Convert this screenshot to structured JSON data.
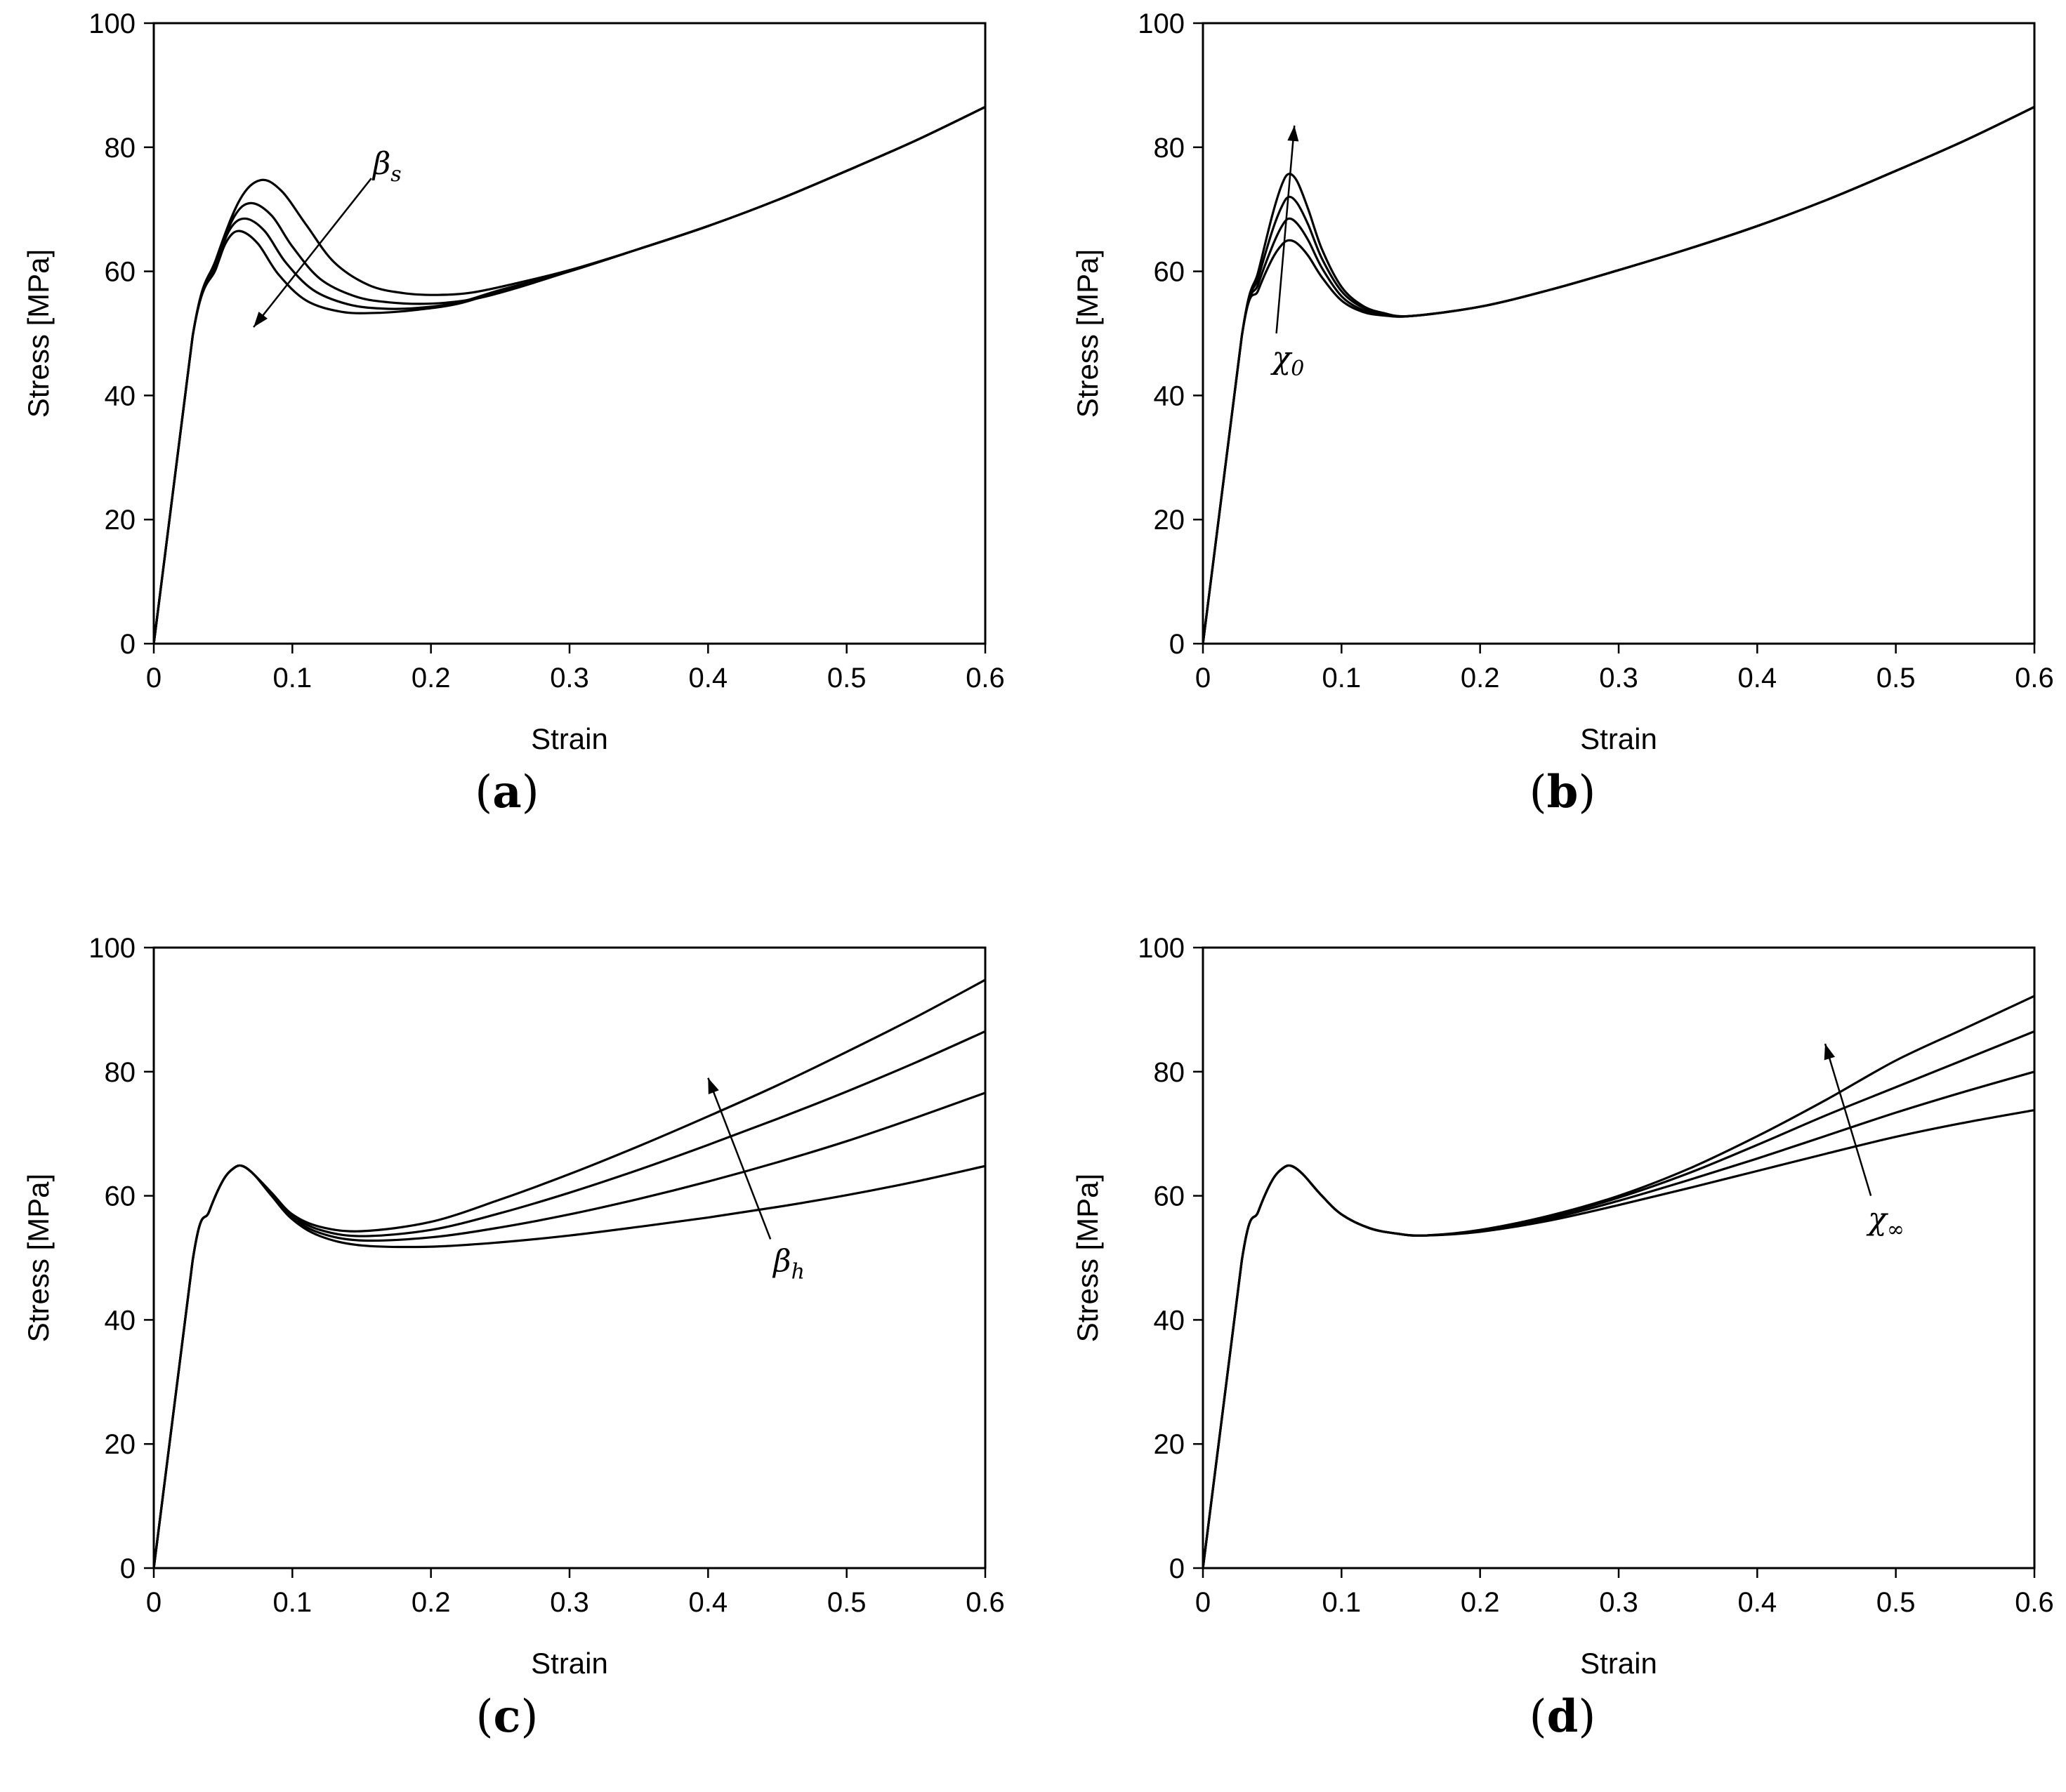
{
  "chart_data": [
    {
      "panel": "a",
      "panel_label": "a",
      "type": "line",
      "xlabel": "Strain",
      "ylabel": "Stress [MPa]",
      "xlim": [
        0,
        0.6
      ],
      "ylim": [
        0,
        100
      ],
      "xticks": [
        "0",
        "0.1",
        "0.2",
        "0.3",
        "0.4",
        "0.5",
        "0.6"
      ],
      "yticks": [
        "0",
        "20",
        "40",
        "60",
        "80",
        "100"
      ],
      "annotation": {
        "text": "β",
        "sub": "s",
        "arrow_from": [
          0.157,
          75
        ],
        "arrow_to": [
          0.072,
          51
        ]
      },
      "series": [
        {
          "name": "β_s 1",
          "x": [
            0,
            0.028,
            0.045,
            0.062,
            0.077,
            0.092,
            0.11,
            0.13,
            0.155,
            0.18,
            0.205,
            0.23,
            0.26,
            0.3,
            0.35,
            0.4,
            0.45,
            0.5,
            0.55,
            0.6
          ],
          "y": [
            0,
            49.5,
            62,
            71.5,
            74.7,
            73,
            67.5,
            61.5,
            57.8,
            56.5,
            56.2,
            56.6,
            58,
            60.2,
            63.6,
            67.3,
            71.5,
            76.2,
            81.1,
            86.5
          ]
        },
        {
          "name": "β_s 2",
          "x": [
            0,
            0.028,
            0.045,
            0.058,
            0.07,
            0.085,
            0.1,
            0.12,
            0.145,
            0.17,
            0.2,
            0.23,
            0.26,
            0.3,
            0.35,
            0.4,
            0.45,
            0.5,
            0.55,
            0.6
          ],
          "y": [
            0,
            49.5,
            61.5,
            68.8,
            71,
            69,
            64,
            58.8,
            56,
            55,
            54.8,
            55.5,
            57.2,
            60,
            63.6,
            67.3,
            71.5,
            76.2,
            81.1,
            86.5
          ]
        },
        {
          "name": "β_s 3",
          "x": [
            0,
            0.028,
            0.045,
            0.055,
            0.066,
            0.08,
            0.095,
            0.115,
            0.14,
            0.165,
            0.19,
            0.22,
            0.25,
            0.3,
            0.35,
            0.4,
            0.45,
            0.5,
            0.55,
            0.6
          ],
          "y": [
            0,
            49.5,
            61,
            66.8,
            68.5,
            66.5,
            61.5,
            57,
            54.7,
            54,
            54.1,
            55,
            57,
            60,
            63.6,
            67.3,
            71.5,
            76.2,
            81.1,
            86.5
          ]
        },
        {
          "name": "β_s 4",
          "x": [
            0,
            0.028,
            0.045,
            0.053,
            0.062,
            0.075,
            0.09,
            0.11,
            0.135,
            0.16,
            0.19,
            0.22,
            0.25,
            0.3,
            0.35,
            0.4,
            0.45,
            0.5,
            0.55,
            0.6
          ],
          "y": [
            0,
            49.5,
            60.5,
            65,
            66.5,
            64.5,
            59.5,
            55.3,
            53.5,
            53.3,
            53.8,
            54.8,
            56.8,
            60,
            63.6,
            67.3,
            71.5,
            76.2,
            81.1,
            86.5
          ]
        }
      ]
    },
    {
      "panel": "b",
      "panel_label": "b",
      "type": "line",
      "xlabel": "Strain",
      "ylabel": "Stress [MPa]",
      "xlim": [
        0,
        0.6
      ],
      "ylim": [
        0,
        100
      ],
      "xticks": [
        "0",
        "0.1",
        "0.2",
        "0.3",
        "0.4",
        "0.5",
        "0.6"
      ],
      "yticks": [
        "0",
        "20",
        "40",
        "60",
        "80",
        "100"
      ],
      "annotation": {
        "text": "χ",
        "sub": "0",
        "arrow_from": [
          0.053,
          50
        ],
        "arrow_to": [
          0.066,
          83.5
        ]
      },
      "series": [
        {
          "name": "χ_0 1",
          "x": [
            0,
            0.028,
            0.04,
            0.05,
            0.057,
            0.062,
            0.068,
            0.076,
            0.086,
            0.1,
            0.115,
            0.13,
            0.15,
            0.2,
            0.25,
            0.3,
            0.35,
            0.4,
            0.45,
            0.5,
            0.55,
            0.6
          ],
          "y": [
            0,
            49.5,
            60,
            69,
            74,
            75.7,
            74.5,
            70,
            63.5,
            57.5,
            54.5,
            53.3,
            52.8,
            54.3,
            57,
            60.2,
            63.6,
            67.3,
            71.5,
            76.2,
            81.1,
            86.5
          ]
        },
        {
          "name": "χ_0 2",
          "x": [
            0,
            0.028,
            0.04,
            0.05,
            0.057,
            0.062,
            0.068,
            0.076,
            0.086,
            0.1,
            0.115,
            0.13,
            0.15,
            0.2,
            0.25,
            0.3,
            0.35,
            0.4,
            0.45,
            0.5,
            0.55,
            0.6
          ],
          "y": [
            0,
            49.5,
            59,
            66.5,
            70.5,
            72,
            71,
            67.5,
            62,
            56.8,
            54.2,
            53.2,
            52.8,
            54.3,
            57,
            60.2,
            63.6,
            67.3,
            71.5,
            76.2,
            81.1,
            86.5
          ]
        },
        {
          "name": "χ_0 3",
          "x": [
            0,
            0.028,
            0.04,
            0.05,
            0.057,
            0.062,
            0.068,
            0.076,
            0.086,
            0.1,
            0.115,
            0.13,
            0.15,
            0.2,
            0.25,
            0.3,
            0.35,
            0.4,
            0.45,
            0.5,
            0.55,
            0.6
          ],
          "y": [
            0,
            49.5,
            58,
            64,
            67.3,
            68.5,
            67.7,
            65,
            60.5,
            56,
            53.8,
            53,
            52.8,
            54.3,
            57,
            60.2,
            63.6,
            67.3,
            71.5,
            76.2,
            81.1,
            86.5
          ]
        },
        {
          "name": "χ_0 4",
          "x": [
            0,
            0.028,
            0.04,
            0.05,
            0.057,
            0.062,
            0.068,
            0.076,
            0.086,
            0.1,
            0.115,
            0.13,
            0.15,
            0.2,
            0.25,
            0.3,
            0.35,
            0.4,
            0.45,
            0.5,
            0.55,
            0.6
          ],
          "y": [
            0,
            49.5,
            57,
            62,
            64.3,
            65,
            64.5,
            62.5,
            59,
            55.3,
            53.5,
            52.9,
            52.8,
            54.3,
            57,
            60.2,
            63.6,
            67.3,
            71.5,
            76.2,
            81.1,
            86.5
          ]
        }
      ]
    },
    {
      "panel": "c",
      "panel_label": "c",
      "type": "line",
      "xlabel": "Strain",
      "ylabel": "Stress [MPa]",
      "xlim": [
        0,
        0.6
      ],
      "ylim": [
        0,
        100
      ],
      "xticks": [
        "0",
        "0.1",
        "0.2",
        "0.3",
        "0.4",
        "0.5",
        "0.6"
      ],
      "yticks": [
        "0",
        "20",
        "40",
        "60",
        "80",
        "100"
      ],
      "annotation": {
        "text": "β",
        "sub": "h",
        "arrow_from": [
          0.445,
          53
        ],
        "arrow_to": [
          0.4,
          79
        ]
      },
      "series": [
        {
          "name": "β_h 1",
          "x": [
            0,
            0.028,
            0.04,
            0.05,
            0.058,
            0.064,
            0.072,
            0.085,
            0.1,
            0.12,
            0.15,
            0.2,
            0.25,
            0.3,
            0.35,
            0.4,
            0.45,
            0.5,
            0.55,
            0.6
          ],
          "y": [
            0,
            49.5,
            57.5,
            62.5,
            64.5,
            64.8,
            63.5,
            60.5,
            57,
            55,
            54.3,
            55.8,
            59.4,
            63.5,
            68,
            72.8,
            77.8,
            83.2,
            88.8,
            94.8
          ]
        },
        {
          "name": "β_h 2",
          "x": [
            0,
            0.028,
            0.04,
            0.05,
            0.058,
            0.064,
            0.072,
            0.085,
            0.1,
            0.12,
            0.15,
            0.2,
            0.25,
            0.3,
            0.35,
            0.4,
            0.45,
            0.5,
            0.55,
            0.6
          ],
          "y": [
            0,
            49.5,
            57.5,
            62.5,
            64.5,
            64.8,
            63.5,
            60.3,
            56.8,
            54.5,
            53.5,
            54.5,
            57.2,
            60.5,
            64.2,
            68.2,
            72.4,
            76.8,
            81.5,
            86.5
          ]
        },
        {
          "name": "β_h 3",
          "x": [
            0,
            0.028,
            0.04,
            0.05,
            0.058,
            0.064,
            0.072,
            0.085,
            0.1,
            0.12,
            0.15,
            0.2,
            0.25,
            0.3,
            0.35,
            0.4,
            0.45,
            0.5,
            0.55,
            0.6
          ],
          "y": [
            0,
            49.5,
            57.5,
            62.5,
            64.5,
            64.8,
            63.5,
            60.2,
            56.5,
            54,
            52.8,
            53.3,
            54.9,
            57,
            59.5,
            62.3,
            65.4,
            68.8,
            72.6,
            76.6
          ]
        },
        {
          "name": "β_h 4",
          "x": [
            0,
            0.028,
            0.04,
            0.05,
            0.058,
            0.064,
            0.072,
            0.085,
            0.1,
            0.12,
            0.15,
            0.2,
            0.25,
            0.3,
            0.35,
            0.4,
            0.45,
            0.5,
            0.55,
            0.6
          ],
          "y": [
            0,
            49.5,
            57.5,
            62.5,
            64.5,
            64.8,
            63.5,
            60,
            56.2,
            53.5,
            52,
            51.8,
            52.5,
            53.6,
            55,
            56.5,
            58.2,
            60.1,
            62.3,
            64.8
          ]
        }
      ]
    },
    {
      "panel": "d",
      "panel_label": "d",
      "type": "line",
      "xlabel": "Strain",
      "ylabel": "Stress [MPa]",
      "xlim": [
        0,
        0.6
      ],
      "ylim": [
        0,
        100
      ],
      "xticks": [
        "0",
        "0.1",
        "0.2",
        "0.3",
        "0.4",
        "0.5",
        "0.6"
      ],
      "yticks": [
        "0",
        "20",
        "40",
        "60",
        "80",
        "100"
      ],
      "annotation": {
        "text": "χ",
        "sub": "∞",
        "arrow_from": [
          0.482,
          60
        ],
        "arrow_to": [
          0.449,
          84.5
        ]
      },
      "series": [
        {
          "name": "χ_∞ 1",
          "x": [
            0,
            0.028,
            0.04,
            0.05,
            0.058,
            0.064,
            0.072,
            0.085,
            0.1,
            0.12,
            0.14,
            0.16,
            0.2,
            0.25,
            0.3,
            0.35,
            0.4,
            0.45,
            0.5,
            0.55,
            0.6
          ],
          "y": [
            0,
            49.5,
            57.5,
            62.5,
            64.5,
            64.8,
            63.5,
            60.2,
            57,
            54.8,
            53.9,
            53.6,
            54.5,
            56.8,
            60,
            64.3,
            69.6,
            75.5,
            81.8,
            87,
            92.2
          ]
        },
        {
          "name": "χ_∞ 2",
          "x": [
            0,
            0.028,
            0.04,
            0.05,
            0.058,
            0.064,
            0.072,
            0.085,
            0.1,
            0.12,
            0.14,
            0.16,
            0.2,
            0.25,
            0.3,
            0.35,
            0.4,
            0.45,
            0.5,
            0.55,
            0.6
          ],
          "y": [
            0,
            49.5,
            57.5,
            62.5,
            64.5,
            64.8,
            63.5,
            60.2,
            57,
            54.8,
            53.9,
            53.6,
            54.4,
            56.6,
            59.7,
            63.6,
            68.2,
            73,
            77.5,
            82,
            86.5
          ]
        },
        {
          "name": "χ_∞ 3",
          "x": [
            0,
            0.028,
            0.04,
            0.05,
            0.058,
            0.064,
            0.072,
            0.085,
            0.1,
            0.12,
            0.14,
            0.16,
            0.2,
            0.25,
            0.3,
            0.35,
            0.4,
            0.45,
            0.5,
            0.55,
            0.6
          ],
          "y": [
            0,
            49.5,
            57.5,
            62.5,
            64.5,
            64.8,
            63.5,
            60.2,
            57,
            54.8,
            53.9,
            53.6,
            54.3,
            56.3,
            59.2,
            62.5,
            66,
            69.7,
            73.4,
            76.8,
            80
          ]
        },
        {
          "name": "χ_∞ 4",
          "x": [
            0,
            0.028,
            0.04,
            0.05,
            0.058,
            0.064,
            0.072,
            0.085,
            0.1,
            0.12,
            0.14,
            0.16,
            0.2,
            0.25,
            0.3,
            0.35,
            0.4,
            0.45,
            0.5,
            0.55,
            0.6
          ],
          "y": [
            0,
            49.5,
            57.5,
            62.5,
            64.5,
            64.8,
            63.5,
            60.2,
            57,
            54.8,
            53.9,
            53.6,
            54.2,
            56,
            58.5,
            61.2,
            64,
            66.8,
            69.5,
            71.8,
            73.8
          ]
        }
      ]
    }
  ]
}
